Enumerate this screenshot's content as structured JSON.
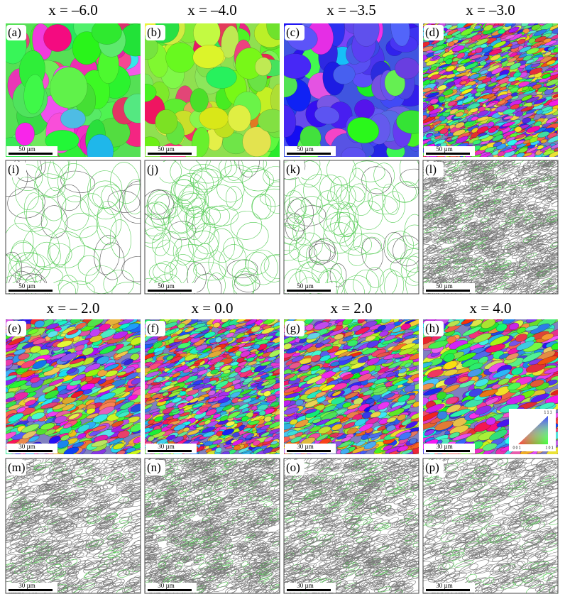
{
  "top": {
    "titles": [
      "x = –6.0",
      "x = –4.0",
      "x = –3.5",
      "x = –3.0"
    ],
    "ipf": [
      {
        "label": "(a)",
        "scale": "50 µm"
      },
      {
        "label": "(b)",
        "scale": "50 µm"
      },
      {
        "label": "(c)",
        "scale": "50 µm"
      },
      {
        "label": "(d)",
        "scale": "50 µm"
      }
    ],
    "boundary": [
      {
        "label": "(i)",
        "scale": "50 µm"
      },
      {
        "label": "(j)",
        "scale": "50 µm"
      },
      {
        "label": "(k)",
        "scale": "50 µm"
      },
      {
        "label": "(l)",
        "scale": "50 µm"
      }
    ]
  },
  "bottom": {
    "titles": [
      "x = – 2.0",
      "x = 0.0",
      "x = 2.0",
      "x = 4.0"
    ],
    "ipf": [
      {
        "label": "(e)",
        "scale": "30 µm"
      },
      {
        "label": "(f)",
        "scale": "30 µm"
      },
      {
        "label": "(g)",
        "scale": "30 µm"
      },
      {
        "label": "(h)",
        "scale": "30 µm"
      }
    ],
    "boundary": [
      {
        "label": "(m)",
        "scale": "30 µm"
      },
      {
        "label": "(n)",
        "scale": "30 µm"
      },
      {
        "label": "(o)",
        "scale": "30 µm"
      },
      {
        "label": "(p)",
        "scale": "30 µm"
      }
    ]
  },
  "legend": {
    "top": "1 1 1",
    "left": "0 0 1",
    "right": "1 0 1"
  }
}
